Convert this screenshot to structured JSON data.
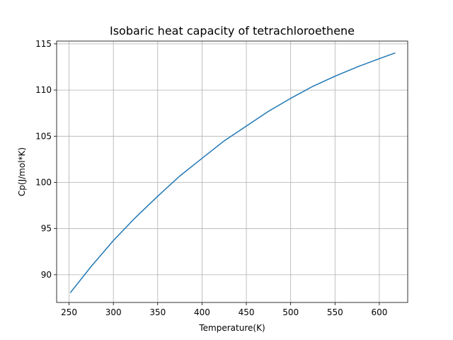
{
  "chart_data": {
    "type": "line",
    "title": "Isobaric heat capacity of tetrachloroethene",
    "xlabel": "Temperature(K)",
    "ylabel": "Cp(J/mol*K)",
    "xlim": [
      236,
      632
    ],
    "ylim": [
      87.0,
      115.3
    ],
    "xticks": [
      250,
      300,
      350,
      400,
      450,
      500,
      550,
      600
    ],
    "yticks": [
      90,
      95,
      100,
      105,
      110,
      115
    ],
    "grid": true,
    "line_color": "#1f77b4",
    "series": [
      {
        "x": [
          251.8,
          275,
          300,
          325,
          350,
          375,
          400,
          425,
          450,
          475,
          500,
          525,
          550,
          575,
          600,
          617.4
        ],
        "y": [
          88.1,
          90.9,
          93.7,
          96.2,
          98.5,
          100.7,
          102.6,
          104.5,
          106.1,
          107.7,
          109.1,
          110.4,
          111.5,
          112.5,
          113.4,
          114.0
        ]
      }
    ]
  }
}
